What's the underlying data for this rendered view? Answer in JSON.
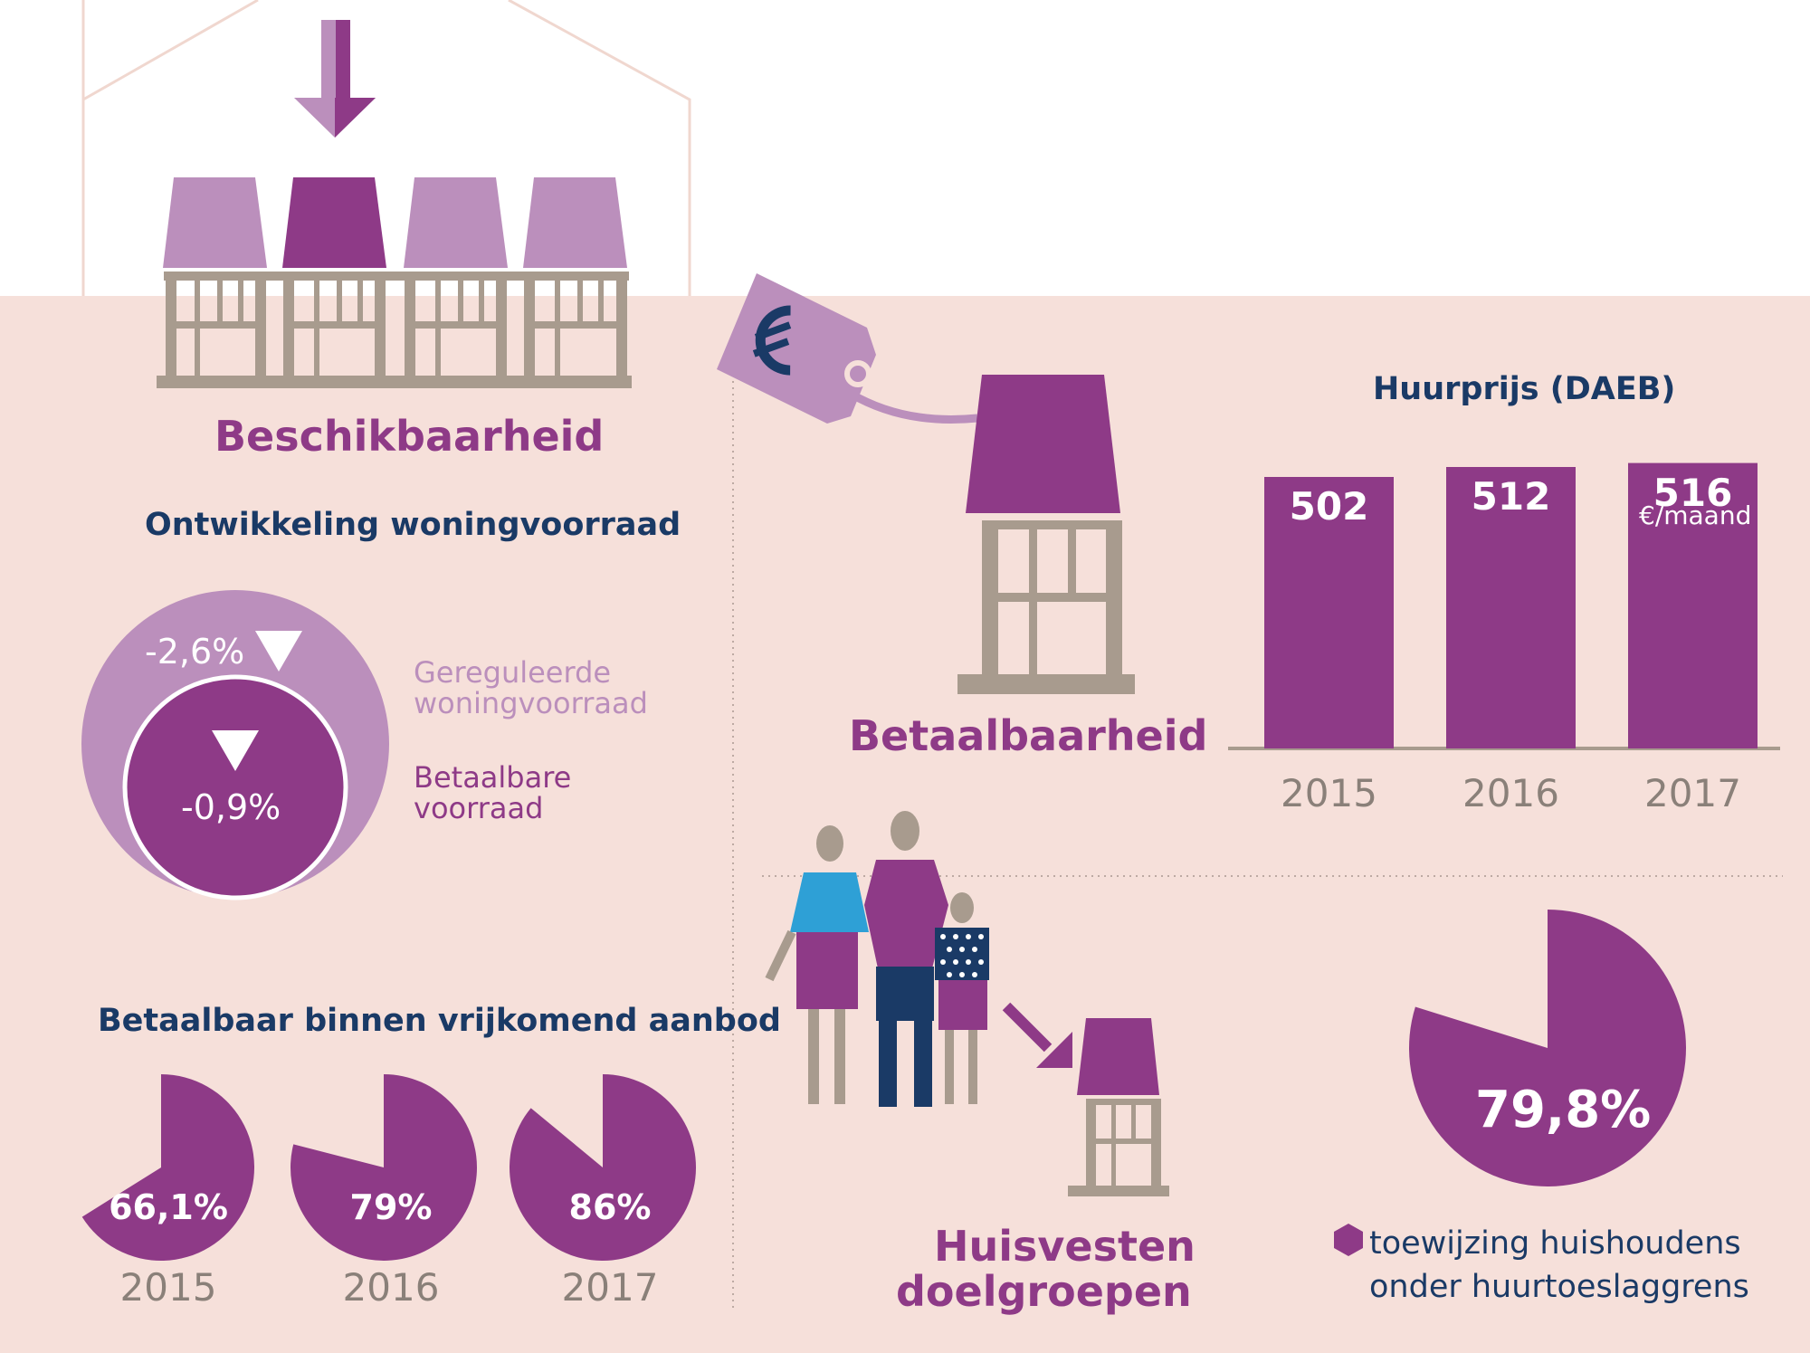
{
  "colors": {
    "purple": "#8e3a87",
    "light_purple": "#bb8fbc",
    "navy": "#1a3a66",
    "grey": "#a89b8e",
    "background": "#f6e0da"
  },
  "sections": {
    "beschikbaarheid": "Beschikbaarheid",
    "betaalbaarheid": "Betaalbaarheid",
    "huisvesten_line1": "Huisvesten",
    "huisvesten_line2": "doelgroepen"
  },
  "woningvoorraad": {
    "title": "Ontwikkeling woningvoorraad",
    "outer_value": "-2,6%",
    "inner_value": "-0,9%",
    "legend_outer_line1": "Gereguleerde",
    "legend_outer_line2": "woningvoorraad",
    "legend_inner_line1": "Betaalbare",
    "legend_inner_line2": "voorraad"
  },
  "huurprijs": {
    "title": "Huurprijs (DAEB)",
    "unit": "€/maand"
  },
  "aanbod": {
    "title": "Betaalbaar binnen vrijkomend aanbod"
  },
  "toewijzing": {
    "value": "79,8%",
    "legend_line1": "toewijzing huishoudens",
    "legend_line2": "onder huurtoeslaggrens"
  },
  "icons": [
    "down-arrow-icon",
    "houses-row-icon",
    "price-tag-icon",
    "euro-icon",
    "house-icon",
    "family-icon",
    "pointer-arrow-icon",
    "hexagon-legend-icon"
  ],
  "chart_data": [
    {
      "type": "bar",
      "title": "Huurprijs (DAEB)",
      "categories": [
        "2015",
        "2016",
        "2017"
      ],
      "values": [
        502,
        512,
        516
      ],
      "unit": "€/maand",
      "labels": [
        "502",
        "512",
        "516"
      ]
    },
    {
      "type": "pie",
      "title": "Betaalbaar binnen vrijkomend aanbod",
      "categories": [
        "2015",
        "2016",
        "2017"
      ],
      "values": [
        66.1,
        79,
        86
      ],
      "labels": [
        "66,1%",
        "79%",
        "86%"
      ]
    },
    {
      "type": "pie",
      "title": "",
      "values": [
        79.8
      ],
      "labels": [
        "79,8%"
      ],
      "legend": "toewijzing huishoudens onder huurtoeslaggrens"
    },
    {
      "type": "bubble",
      "title": "Ontwikkeling woningvoorraad",
      "series": [
        {
          "name": "Gereguleerde woningvoorraad",
          "change": -2.6,
          "label": "-2,6%"
        },
        {
          "name": "Betaalbare voorraad",
          "change": -0.9,
          "label": "-0,9%"
        }
      ]
    }
  ]
}
